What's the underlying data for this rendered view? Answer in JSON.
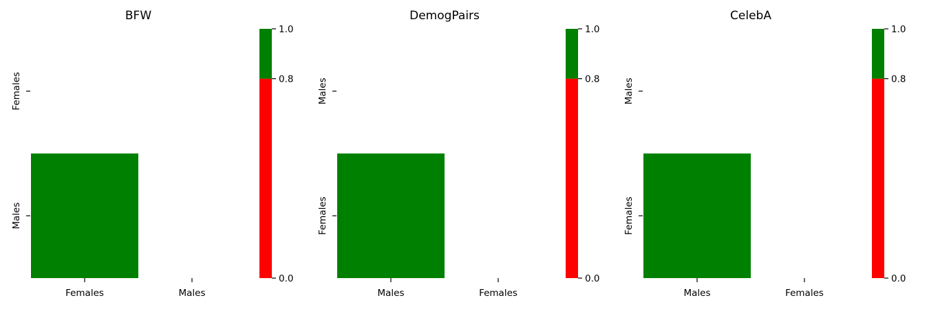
{
  "chart_data": [
    {
      "type": "heatmap",
      "title": "BFW",
      "x_categories": [
        "Females",
        "Males"
      ],
      "y_categories": [
        "Females",
        "Males"
      ],
      "cells": [
        {
          "x": "Females",
          "y": "Males",
          "value": 1.0
        }
      ],
      "colorbar": {
        "ticks": [
          "0.0",
          "0.8",
          "1.0"
        ],
        "boundaries": [
          0.0,
          0.8,
          1.0
        ],
        "colors": [
          "#ff0000",
          "#008000"
        ]
      }
    },
    {
      "type": "heatmap",
      "title": "DemogPairs",
      "x_categories": [
        "Males",
        "Females"
      ],
      "y_categories": [
        "Males",
        "Females"
      ],
      "cells": [
        {
          "x": "Males",
          "y": "Females",
          "value": 1.0
        }
      ],
      "colorbar": {
        "ticks": [
          "0.0",
          "0.8",
          "1.0"
        ],
        "boundaries": [
          0.0,
          0.8,
          1.0
        ],
        "colors": [
          "#ff0000",
          "#008000"
        ]
      }
    },
    {
      "type": "heatmap",
      "title": "CelebA",
      "x_categories": [
        "Males",
        "Females"
      ],
      "y_categories": [
        "Males",
        "Females"
      ],
      "cells": [
        {
          "x": "Males",
          "y": "Females",
          "value": 1.0
        }
      ],
      "colorbar": {
        "ticks": [
          "0.0",
          "0.8",
          "1.0"
        ],
        "boundaries": [
          0.0,
          0.8,
          1.0
        ],
        "colors": [
          "#ff0000",
          "#008000"
        ]
      }
    }
  ]
}
